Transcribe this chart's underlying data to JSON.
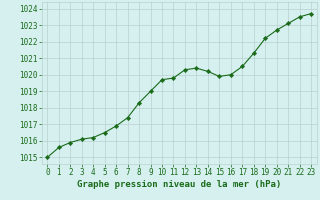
{
  "hours": [
    0,
    1,
    2,
    3,
    4,
    5,
    6,
    7,
    8,
    9,
    10,
    11,
    12,
    13,
    14,
    15,
    16,
    17,
    18,
    19,
    20,
    21,
    22,
    23
  ],
  "pressure": [
    1015.0,
    1015.6,
    1015.9,
    1016.1,
    1016.2,
    1016.5,
    1016.9,
    1017.4,
    1018.3,
    1019.0,
    1019.7,
    1019.8,
    1020.3,
    1020.4,
    1020.2,
    1019.9,
    1020.0,
    1020.5,
    1021.3,
    1022.2,
    1022.7,
    1023.1,
    1023.5,
    1023.7
  ],
  "line_color": "#1a6b1a",
  "marker": "D",
  "marker_size": 2.2,
  "bg_color": "#d6f0f0",
  "grid_color": "#b8d0d0",
  "text_color": "#1a6b1a",
  "ylabel_ticks": [
    1015,
    1016,
    1017,
    1018,
    1019,
    1020,
    1021,
    1022,
    1023,
    1024
  ],
  "xlabel_label": "Graphe pression niveau de la mer (hPa)",
  "ylim": [
    1014.6,
    1024.4
  ],
  "xlim": [
    -0.5,
    23.5
  ],
  "axis_fontsize": 5.5,
  "label_fontsize": 6.5
}
